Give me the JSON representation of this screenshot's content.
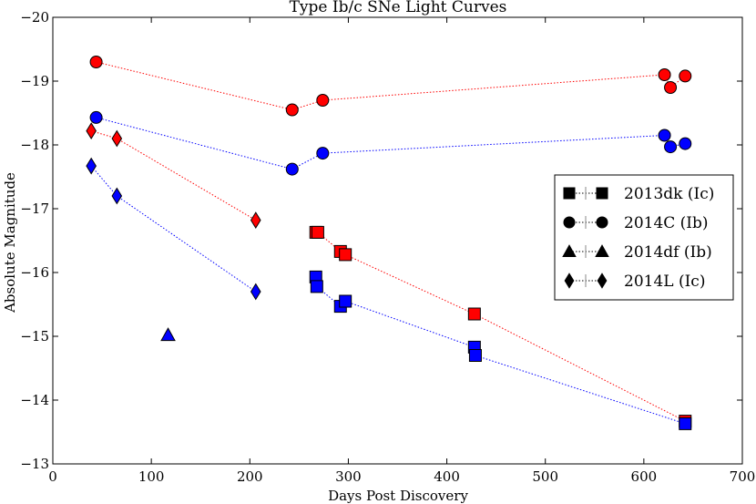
{
  "chart_data": {
    "type": "scatter",
    "title": "Type Ib/c SNe Light Curves",
    "xlabel": "Days Post Discovery",
    "ylabel": "Absolute Magnitude",
    "xlim": [
      0,
      700
    ],
    "ylim": [
      -13,
      -20
    ],
    "y_inverted": true,
    "xticks": [
      0,
      100,
      200,
      300,
      400,
      500,
      600,
      700
    ],
    "yticks": [
      -13,
      -14,
      -15,
      -16,
      -17,
      -18,
      -19,
      -20
    ],
    "legend_position": "center-right",
    "colors": {
      "red": "#ff0000",
      "blue": "#0000ff"
    },
    "legend": [
      {
        "label": "2013dk (Ic)",
        "marker": "square"
      },
      {
        "label": "2014C (Ib)",
        "marker": "circle"
      },
      {
        "label": "2014df (Ib)",
        "marker": "triangle"
      },
      {
        "label": "2014L (Ic)",
        "marker": "diamond"
      }
    ],
    "series": [
      {
        "name": "2014C (Ib)",
        "band": "red",
        "marker": "circle",
        "connected": true,
        "x": [
          44,
          243,
          274,
          621,
          627,
          642
        ],
        "y": [
          -19.3,
          -18.55,
          -18.7,
          -19.1,
          -18.9,
          -19.08
        ]
      },
      {
        "name": "2014C (Ib)",
        "band": "blue",
        "marker": "circle",
        "connected": true,
        "x": [
          44,
          243,
          274,
          621,
          627,
          642
        ],
        "y": [
          -18.43,
          -17.62,
          -17.87,
          -18.15,
          -17.97,
          -18.02
        ]
      },
      {
        "name": "2014L (Ic)",
        "band": "red",
        "marker": "diamond",
        "connected": true,
        "x": [
          39,
          65,
          206
        ],
        "y": [
          -18.22,
          -18.1,
          -16.82
        ]
      },
      {
        "name": "2014L (Ic)",
        "band": "blue",
        "marker": "diamond",
        "connected": true,
        "x": [
          39,
          65,
          206
        ],
        "y": [
          -17.67,
          -17.2,
          -15.7
        ]
      },
      {
        "name": "2014df (Ib)",
        "band": "blue",
        "marker": "triangle",
        "connected": false,
        "x": [
          117
        ],
        "y": [
          -15.02
        ]
      },
      {
        "name": "2013dk (Ic)",
        "band": "red",
        "marker": "square",
        "connected": true,
        "x": [
          267,
          269,
          292,
          297,
          428,
          642
        ],
        "y": [
          -16.63,
          -16.63,
          -16.33,
          -16.28,
          -15.35,
          -13.67
        ]
      },
      {
        "name": "2013dk (Ic)",
        "band": "blue",
        "marker": "square",
        "connected": true,
        "x": [
          267,
          268,
          292,
          297,
          428,
          429,
          642
        ],
        "y": [
          -15.93,
          -15.78,
          -15.47,
          -15.55,
          -14.83,
          -14.7,
          -13.63
        ]
      }
    ]
  }
}
